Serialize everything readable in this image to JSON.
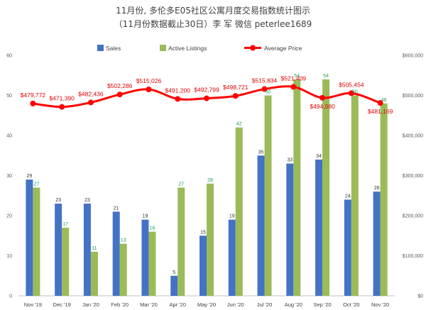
{
  "chart_data": {
    "type": "bar",
    "title": "11月份, 多伦多E05社区公寓月度交易指数统计图示",
    "subtitle": "（11月份数据截止30日）李 军  微信  peterlee1689",
    "categories": [
      "Nov '19",
      "Dec '19",
      "Jan '20",
      "Feb '20",
      "Mar '20",
      "Apr '20",
      "May '20",
      "Jun '20",
      "Jul '20",
      "Aug '20",
      "Sep '20",
      "Oct '20",
      "Nov '20"
    ],
    "series": [
      {
        "name": "Sales",
        "type": "bar",
        "axis": "left",
        "color": "#4472C4",
        "values": [
          29,
          23,
          23,
          21,
          19,
          5,
          15,
          19,
          35,
          33,
          34,
          24,
          26
        ],
        "labels": [
          "29",
          "23",
          "23",
          "21",
          "19",
          "5",
          "15",
          "19",
          "35",
          "33",
          "34",
          "24",
          "26"
        ]
      },
      {
        "name": "Active Listings",
        "type": "bar",
        "axis": "left",
        "color": "#9BBB59",
        "values": [
          27,
          17,
          11,
          13,
          16,
          27,
          28,
          42,
          50,
          54,
          54,
          50,
          48
        ],
        "labels": [
          "27",
          "17",
          "11",
          "13",
          "16",
          "27",
          "28",
          "42",
          "50",
          "54",
          "54",
          "50",
          "48"
        ],
        "label_color": "#1E9E57"
      },
      {
        "name": "Average Price",
        "type": "line",
        "axis": "right",
        "color": "#FF0000",
        "values": [
          479772,
          471390,
          482436,
          502286,
          515026,
          491200,
          492799,
          498721,
          515834,
          521409,
          494080,
          505454,
          481169
        ],
        "labels": [
          "$479,772",
          "$471,390",
          "$482,436",
          "$502,286",
          "$515,026",
          "$491,200",
          "$492,799",
          "$498,721",
          "$515,834",
          "$521,409",
          "$494,080",
          "$505,454",
          "$481,169"
        ],
        "label_color": "#E00000"
      }
    ],
    "y_left": {
      "min": 0,
      "max": 60,
      "ticks": [
        "0",
        "10",
        "20",
        "30",
        "40",
        "50",
        "60"
      ],
      "tick_values": [
        0,
        10,
        20,
        30,
        40,
        50,
        60
      ]
    },
    "y_right": {
      "min": 0,
      "max": 600000,
      "ticks": [
        "$0",
        "$100,000",
        "$200,000",
        "$300,000",
        "$400,000",
        "$500,000",
        "$600,000"
      ],
      "tick_values": [
        0,
        100000,
        200000,
        300000,
        400000,
        500000,
        600000
      ]
    },
    "grid": false,
    "legend": "top"
  }
}
